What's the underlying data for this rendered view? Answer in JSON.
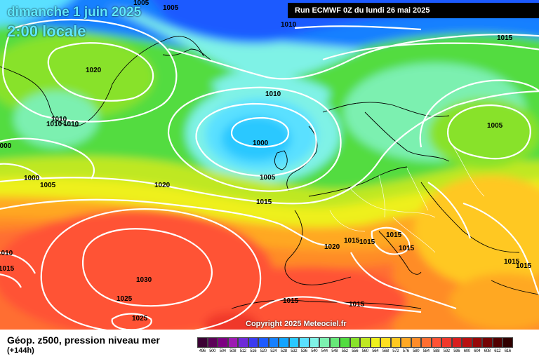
{
  "header": {
    "date_title": "dimanche 1 juin 2025",
    "time_title": "2:00 locale",
    "run_label": "Run ECMWF 0Z du lundi 26 mai 2025"
  },
  "copyright": "Copyright 2025 Meteociel.fr",
  "footer": {
    "title": "Géop. z500, pression niveau mer",
    "subtitle": "(+144h)"
  },
  "isobar_labels": [
    {
      "text": "1005",
      "place": "top-left-edge"
    },
    {
      "text": "1005",
      "place": "north-atlantic-top"
    },
    {
      "text": "1010",
      "place": "norway-sea"
    },
    {
      "text": "1015",
      "place": "scandinavia-north"
    },
    {
      "text": "1020",
      "place": "greenland"
    },
    {
      "text": "1010",
      "place": "greenland-east-coast"
    },
    {
      "text": "1010",
      "place": "greenland-east-coast-2"
    },
    {
      "text": "1010",
      "place": "greenland-east-coast-3"
    },
    {
      "text": "1010",
      "place": "iceland-sea"
    },
    {
      "text": "1000",
      "place": "low-centre-west-of-ireland"
    },
    {
      "text": "1005",
      "place": "baltic-region"
    },
    {
      "text": "1000",
      "place": "left-edge"
    },
    {
      "text": "1000",
      "place": "labrador-sea"
    },
    {
      "text": "1005",
      "place": "labrador-sea-east"
    },
    {
      "text": "1020",
      "place": "mid-atlantic"
    },
    {
      "text": "1005",
      "place": "uk-south"
    },
    {
      "text": "1015",
      "place": "bay-of-biscay-west"
    },
    {
      "text": "1020",
      "place": "iberia-north"
    },
    {
      "text": "1015",
      "place": "alps"
    },
    {
      "text": "1015",
      "place": "ligurian-sea"
    },
    {
      "text": "1015",
      "place": "corsica"
    },
    {
      "text": "1015",
      "place": "italy"
    },
    {
      "text": "1015",
      "place": "balkans"
    },
    {
      "text": "1010",
      "place": "left-edge-south"
    },
    {
      "text": "1015",
      "place": "left-edge-south-2"
    },
    {
      "text": "1030",
      "place": "azores-high"
    },
    {
      "text": "1025",
      "place": "azores-west"
    },
    {
      "text": "1025",
      "place": "azores-south"
    },
    {
      "text": "1015",
      "place": "morocco"
    },
    {
      "text": "1015",
      "place": "algeria"
    },
    {
      "text": "1015",
      "place": "greece"
    }
  ],
  "legend": {
    "ticks": [
      "496",
      "500",
      "504",
      "508",
      "512",
      "516",
      "520",
      "524",
      "528",
      "532",
      "536",
      "540",
      "544",
      "548",
      "552",
      "556",
      "560",
      "564",
      "568",
      "572",
      "576",
      "580",
      "584",
      "588",
      "592",
      "596",
      "600",
      "604",
      "608",
      "612",
      "616"
    ],
    "colors": [
      "#3b0034",
      "#5c0058",
      "#7d0082",
      "#9d1ab2",
      "#6e2bd8",
      "#3b3bf0",
      "#1e5aff",
      "#1780ff",
      "#12a4ff",
      "#2ac8ff",
      "#5ae0ff",
      "#7ff2e6",
      "#7cf0b0",
      "#66e878",
      "#52dc40",
      "#88e22a",
      "#bfe822",
      "#eef01c",
      "#ffe020",
      "#ffc820",
      "#ffa824",
      "#ff8c28",
      "#ff6e30",
      "#ff5234",
      "#f0382a",
      "#d81e1e",
      "#b81010",
      "#960808",
      "#740404",
      "#520000",
      "#300000"
    ]
  }
}
